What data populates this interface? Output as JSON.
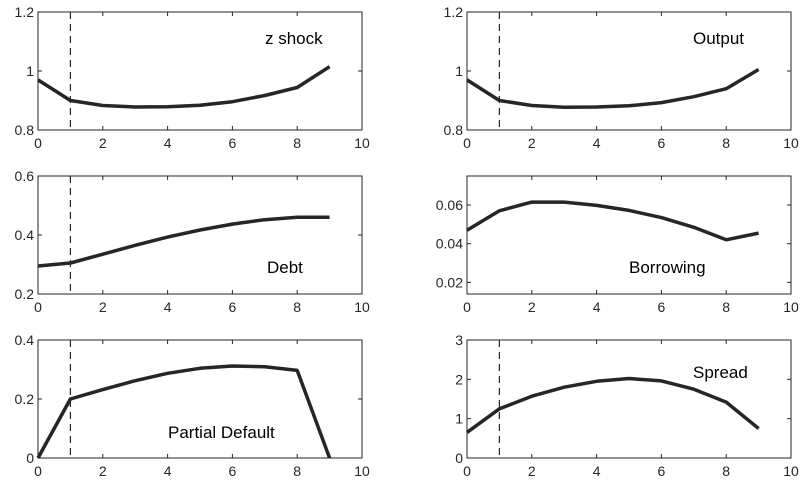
{
  "chart_data": [
    {
      "type": "line",
      "label": "z shock",
      "x": [
        0,
        1,
        2,
        3,
        4,
        5,
        6,
        7,
        8,
        9
      ],
      "y": [
        0.97,
        0.9,
        0.883,
        0.878,
        0.879,
        0.884,
        0.896,
        0.917,
        0.944,
        1.015
      ],
      "xlim": [
        0,
        10
      ],
      "ylim": [
        0.8,
        1.2
      ],
      "xticks": [
        0,
        2,
        4,
        6,
        8,
        10
      ],
      "yticks": [
        0.8,
        1,
        1.2
      ],
      "xtick_labels": [
        "0",
        "2",
        "4",
        "6",
        "8",
        "10"
      ],
      "ytick_labels": [
        "0.8",
        "1",
        "1.2"
      ],
      "vline_x": 1,
      "label_position": "top-right"
    },
    {
      "type": "line",
      "label": "Output",
      "x": [
        0,
        1,
        2,
        3,
        4,
        5,
        6,
        7,
        8,
        9
      ],
      "y": [
        0.97,
        0.9,
        0.883,
        0.877,
        0.878,
        0.882,
        0.893,
        0.913,
        0.94,
        1.005
      ],
      "xlim": [
        0,
        10
      ],
      "ylim": [
        0.8,
        1.2
      ],
      "xticks": [
        0,
        2,
        4,
        6,
        8,
        10
      ],
      "yticks": [
        0.8,
        1,
        1.2
      ],
      "xtick_labels": [
        "0",
        "2",
        "4",
        "6",
        "8",
        "10"
      ],
      "ytick_labels": [
        "0.8",
        "1",
        "1.2"
      ],
      "vline_x": 1,
      "label_position": "top-right"
    },
    {
      "type": "line",
      "label": "Debt",
      "x": [
        0,
        1,
        2,
        3,
        4,
        5,
        6,
        7,
        8,
        9
      ],
      "y": [
        0.295,
        0.305,
        0.335,
        0.365,
        0.393,
        0.417,
        0.437,
        0.452,
        0.46,
        0.46
      ],
      "xlim": [
        0,
        10
      ],
      "ylim": [
        0.2,
        0.6
      ],
      "xticks": [
        0,
        2,
        4,
        6,
        8,
        10
      ],
      "yticks": [
        0.2,
        0.4,
        0.6
      ],
      "xtick_labels": [
        "0",
        "2",
        "4",
        "6",
        "8",
        "10"
      ],
      "ytick_labels": [
        "0.2",
        "0.4",
        "0.6"
      ],
      "vline_x": 1,
      "label_position": "bottom-right"
    },
    {
      "type": "line",
      "label": "Borrowing",
      "x": [
        0,
        1,
        2,
        3,
        4,
        5,
        6,
        7,
        8,
        9
      ],
      "y": [
        0.047,
        0.057,
        0.0615,
        0.0615,
        0.0598,
        0.0572,
        0.0535,
        0.0485,
        0.042,
        0.0455
      ],
      "xlim": [
        0,
        10
      ],
      "ylim": [
        0.014,
        0.075
      ],
      "xticks": [
        0,
        2,
        4,
        6,
        8,
        10
      ],
      "yticks": [
        0.02,
        0.04,
        0.06
      ],
      "xtick_labels": [
        "0",
        "2",
        "4",
        "6",
        "8",
        "10"
      ],
      "ytick_labels": [
        "0.02",
        "0.04",
        "0.06"
      ],
      "vline_x": null,
      "label_position": "bottom-right"
    },
    {
      "type": "line",
      "label": "Partial Default",
      "x": [
        0,
        1,
        2,
        3,
        4,
        5,
        6,
        7,
        8,
        9
      ],
      "y": [
        0,
        0.2,
        0.232,
        0.262,
        0.287,
        0.304,
        0.312,
        0.309,
        0.297,
        0
      ],
      "xlim": [
        0,
        10
      ],
      "ylim": [
        0,
        0.4
      ],
      "xticks": [
        0,
        2,
        4,
        6,
        8,
        10
      ],
      "yticks": [
        0,
        0.2,
        0.4
      ],
      "xtick_labels": [
        "0",
        "2",
        "4",
        "6",
        "8",
        "10"
      ],
      "ytick_labels": [
        "0",
        "0.2",
        "0.4"
      ],
      "vline_x": 1,
      "label_position": "bottom-right"
    },
    {
      "type": "line",
      "label": "Spread",
      "x": [
        0,
        1,
        2,
        3,
        4,
        5,
        6,
        7,
        8,
        9
      ],
      "y": [
        0.65,
        1.25,
        1.57,
        1.8,
        1.95,
        2.02,
        1.96,
        1.75,
        1.42,
        0.75
      ],
      "xlim": [
        0,
        10
      ],
      "ylim": [
        0,
        3
      ],
      "xticks": [
        0,
        2,
        4,
        6,
        8,
        10
      ],
      "yticks": [
        0,
        1,
        2,
        3
      ],
      "xtick_labels": [
        "0",
        "2",
        "4",
        "6",
        "8",
        "10"
      ],
      "ytick_labels": [
        "0",
        "1",
        "2",
        "3"
      ],
      "vline_x": 1,
      "label_position": "top-right"
    }
  ]
}
